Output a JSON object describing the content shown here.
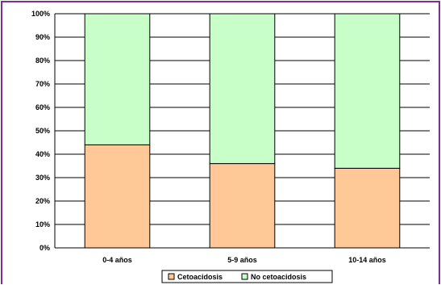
{
  "chart_data": {
    "type": "bar",
    "stacked": true,
    "normalized": true,
    "title": "",
    "xlabel": "",
    "ylabel": "",
    "ylim": [
      0,
      100
    ],
    "y_ticks": [
      "0%",
      "10%",
      "20%",
      "30%",
      "40%",
      "50%",
      "60%",
      "70%",
      "80%",
      "90%",
      "100%"
    ],
    "grid": "horizontal",
    "legend_position": "bottom",
    "categories": [
      "0-4 años",
      "5-9 años",
      "10-14 años"
    ],
    "series": [
      {
        "name": "Cetoacidosis",
        "color": "#ffc896",
        "values": [
          44,
          36,
          34
        ]
      },
      {
        "name": "No cetoacidosis",
        "color": "#c8ffc8",
        "values": [
          56,
          64,
          66
        ]
      }
    ]
  }
}
